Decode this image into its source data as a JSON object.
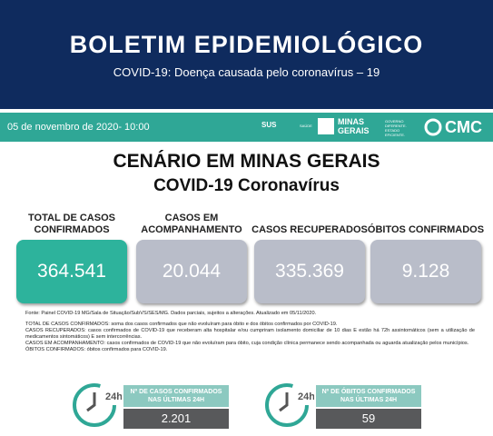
{
  "header": {
    "title": "BOLETIM EPIDEMIOLÓGICO",
    "subtitle": "COVID-19: Doença causada pelo coronavírus – 19"
  },
  "bar": {
    "date": "05 de novembro de 2020- 10:00",
    "logos": {
      "sus": "SUS",
      "saude": "SAÚDE",
      "state": "MINAS GERAIS",
      "slogan": "GOVERNO DIFERENTE. ESTADO EFICIENTE.",
      "cmc": "CMC"
    }
  },
  "section": {
    "title": "CENÁRIO EM MINAS GERAIS",
    "subtitle": "COVID-19 Coronavírus"
  },
  "cards": [
    {
      "label": "TOTAL DE CASOS CONFIRMADOS",
      "value": "364.541"
    },
    {
      "label": "CASOS EM ACOMPANHAMENTO",
      "value": "20.044"
    },
    {
      "label": "CASOS RECUPERADOS",
      "value": "335.369"
    },
    {
      "label": "ÓBITOS CONFIRMADOS",
      "value": "9.128"
    }
  ],
  "source": "Fonte: Painel COVID-19 MG/Sala de Situação/SubVS/SES/MG. Dados parciais, sujeitos a alterações. Atualizado em 05/11/2020.",
  "definitions": [
    "TOTAL DE CASOS CONFIRMADOS: soma dos casos confirmados que não evoluíram para óbito e dos óbitos confirmados por COVID-19.",
    "CASOS RECUPERADOS: casos confirmados de COVID-19 que receberam alta hospitalar e/ou cumpriram isolamento domiciliar de 10 dias E estão há 72h assintomáticos (sem a utilização de medicamentos sintomáticos) E sem intercorrências.",
    "CASOS EM ACOMPANHAMENTO: casos confirmados de COVID-19 que não evoluíram para óbito, cuja condição clínica permanece sendo acompanhada ou aguarda atualização pelos municípios.",
    "ÓBITOS CONFIRMADOS: óbitos confirmados para COVID-19."
  ],
  "daily": [
    {
      "icon": "24h",
      "label": "Nº DE CASOS CONFIRMADOS NAS ÚLTIMAS 24H",
      "value": "2.201"
    },
    {
      "icon": "24h",
      "label": "Nº DE ÓBITOS CONFIRMADOS NAS ÚLTIMAS 24H",
      "value": "59"
    }
  ]
}
